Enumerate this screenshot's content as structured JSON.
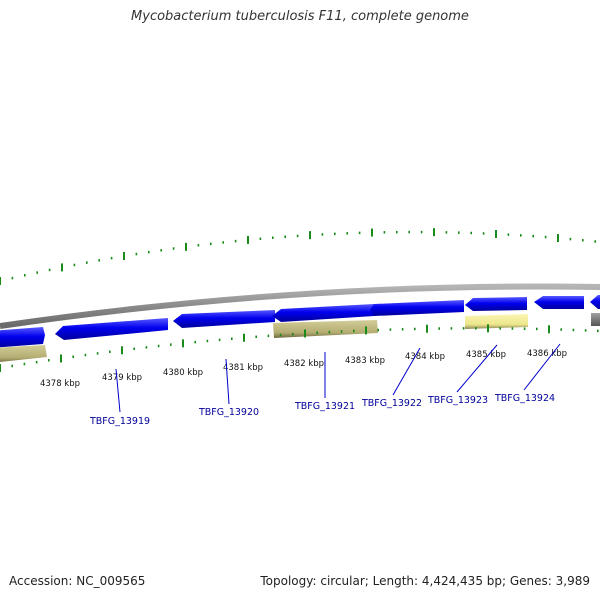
{
  "title": "Mycobacterium tuberculosis F11, complete genome",
  "footer": {
    "accession": "Accession: NC_009565",
    "summary": "Topology: circular; Length: 4,424,435 bp; Genes: 3,989"
  },
  "colors": {
    "forward_gene": "#0000ee",
    "reverse_gene_olive": "#b8b278",
    "reverse_gene_yellow": "#eee88e",
    "reverse_gene_gray": "#777777",
    "backbone": "#8a8a8a",
    "tick": "#1a8a1a",
    "gene_label": "#000099",
    "scale_label": "#111111"
  },
  "scale_labels": [
    "4378 kbp",
    "4379 kbp",
    "4380 kbp",
    "4381 kbp",
    "4382 kbp",
    "4383 kbp",
    "4384 kbp",
    "4385 kbp",
    "4386 kbp"
  ],
  "gene_labels": [
    "TBFG_13919",
    "TBFG_13920",
    "TBFG_13921",
    "TBFG_13922",
    "TBFG_13923",
    "TBFG_13924"
  ]
}
